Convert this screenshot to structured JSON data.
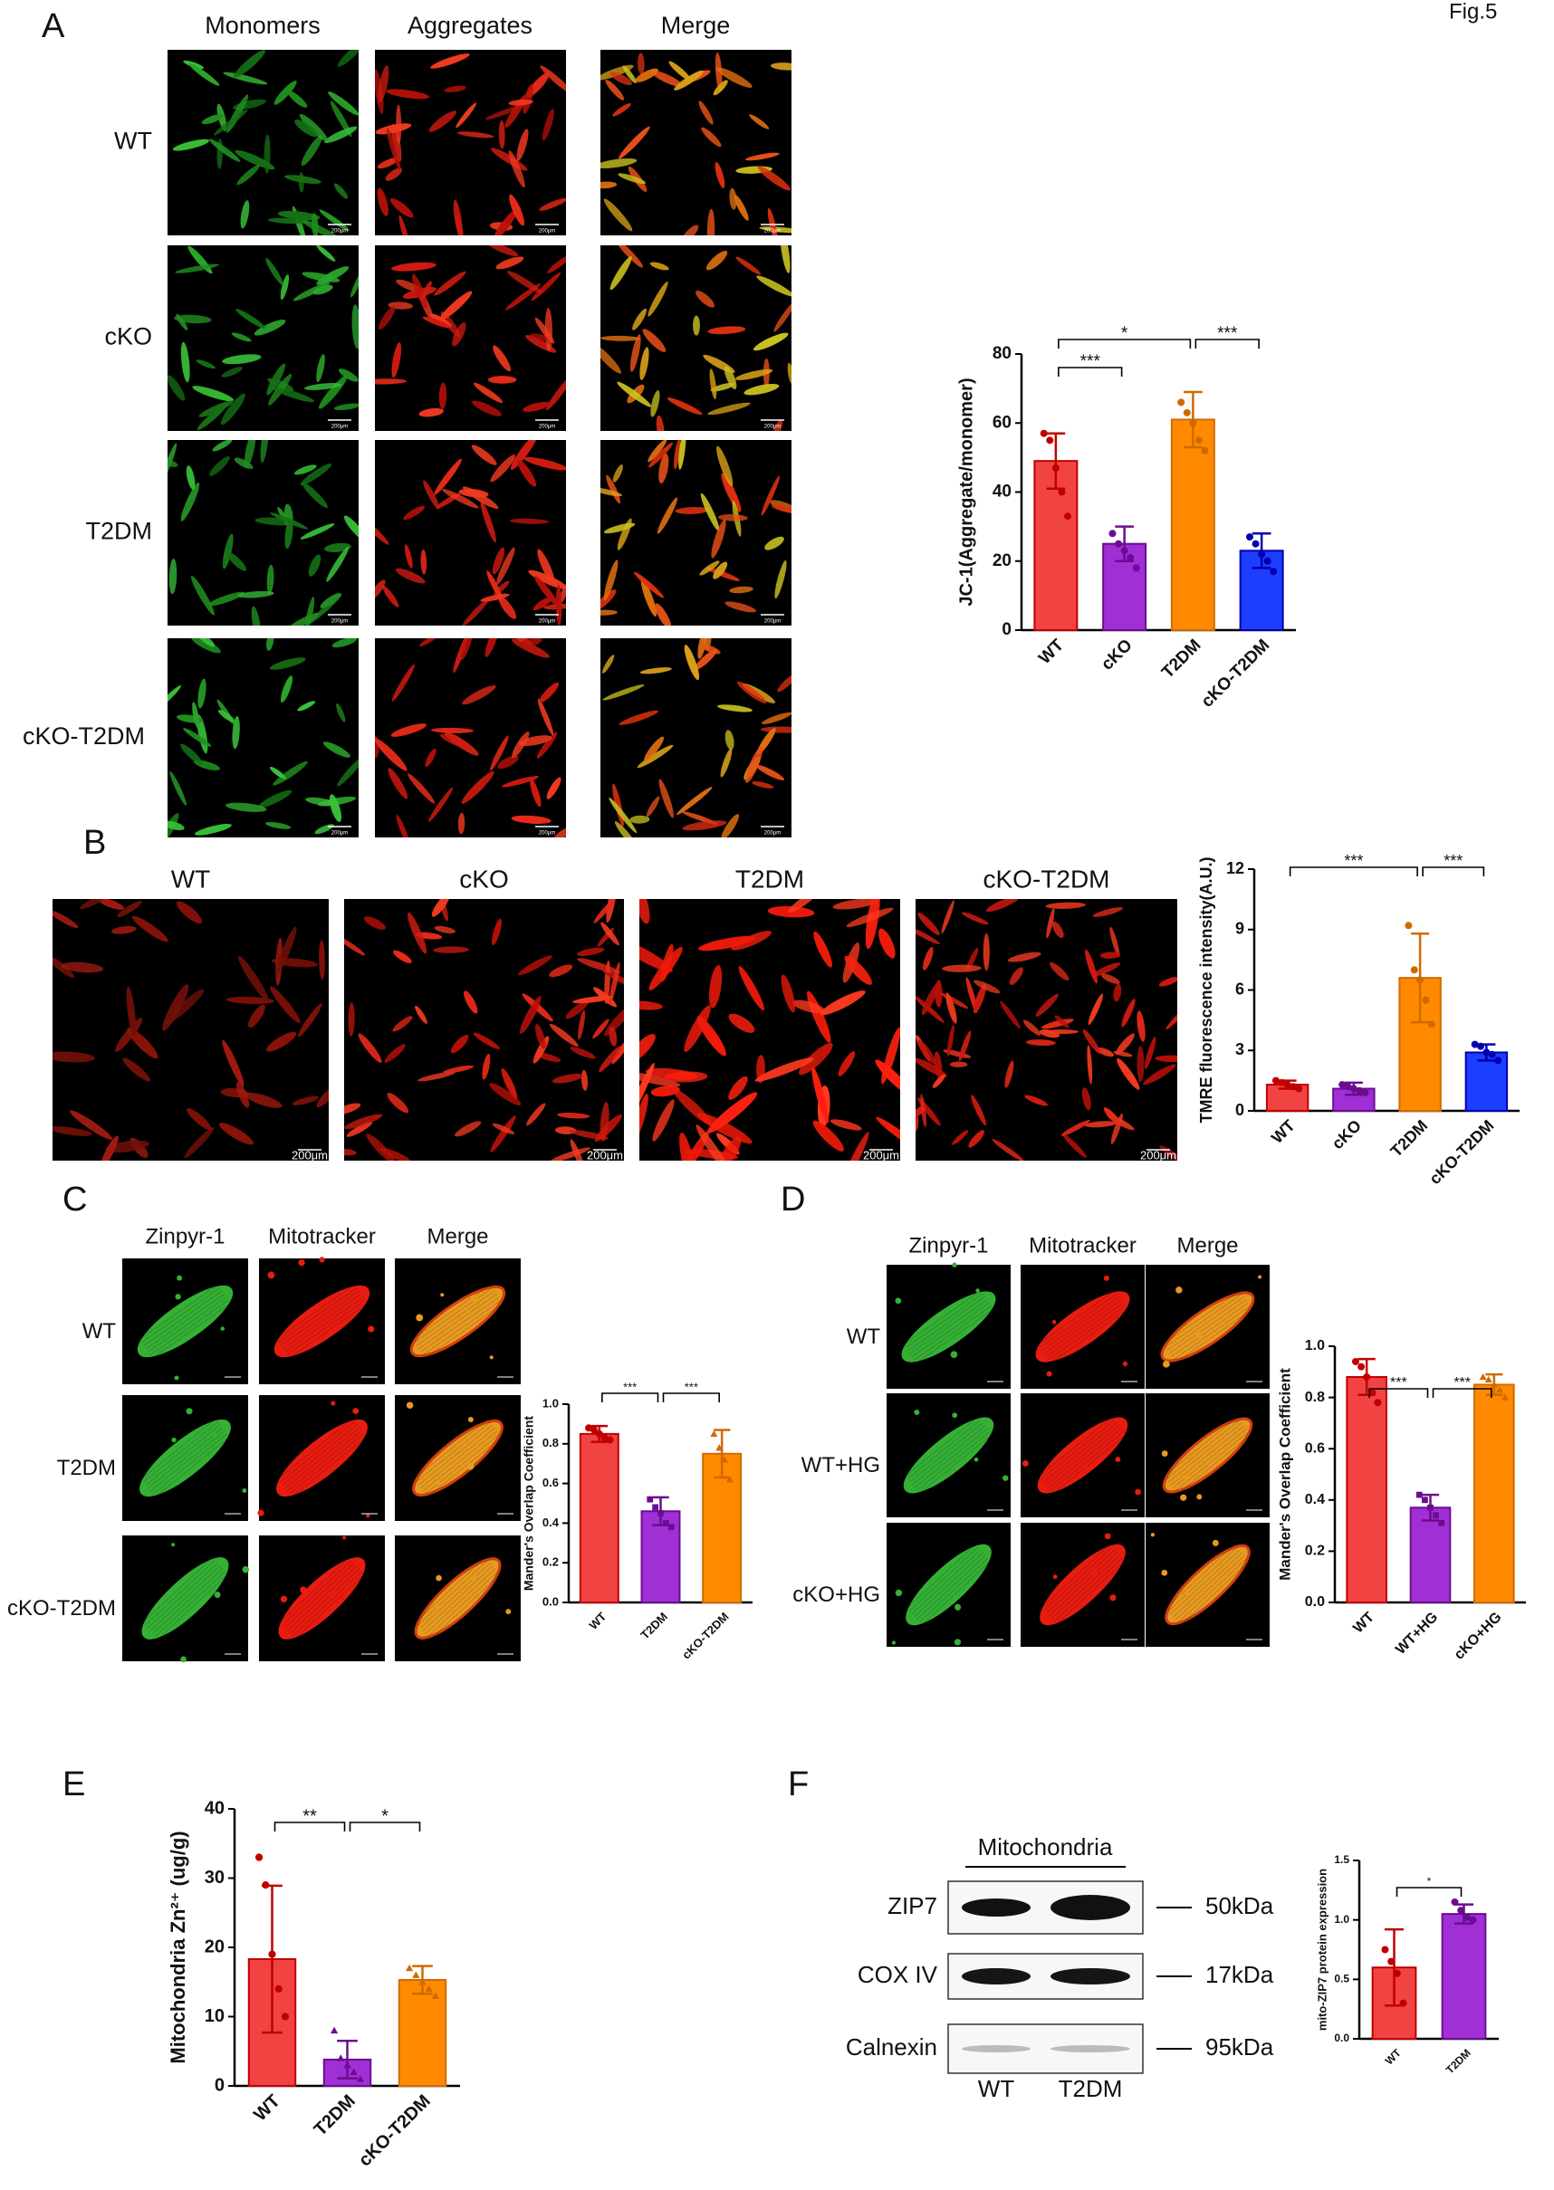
{
  "figure_label": "Fig.5",
  "panel_labels": [
    "A",
    "B",
    "C",
    "D",
    "E",
    "F"
  ],
  "panel_a": {
    "columns": [
      "Monomers",
      "Aggregates",
      "Merge"
    ],
    "rows": [
      "WT",
      "cKO",
      "T2DM",
      "cKO-T2DM"
    ],
    "scale_bar": "200μm"
  },
  "panel_b": {
    "columns": [
      "WT",
      "cKO",
      "T2DM",
      "cKO-T2DM"
    ],
    "scale_bar": "200μm"
  },
  "panel_c": {
    "columns": [
      "Zinpyr-1",
      "Mitotracker",
      "Merge"
    ],
    "rows": [
      "WT",
      "T2DM",
      "cKO-T2DM"
    ]
  },
  "panel_d": {
    "columns": [
      "Zinpyr-1",
      "Mitotracker",
      "Merge"
    ],
    "rows": [
      "WT",
      "WT+HG",
      "cKO+HG"
    ]
  },
  "panel_f": {
    "header": "Mitochondria",
    "bands": [
      "ZIP7",
      "COX IV",
      "Calnexin"
    ],
    "markers": [
      "50kDa",
      "17kDa",
      "95kDa"
    ],
    "lanes": [
      "WT",
      "T2DM"
    ]
  },
  "chart_data": [
    {
      "type": "bar",
      "ylabel": "JC-1(Aggregate/monomer)",
      "categories": [
        "WT",
        "cKO",
        "T2DM",
        "cKO-T2DM"
      ],
      "values": [
        49,
        25,
        61,
        23
      ],
      "errors": [
        8,
        5,
        8,
        5
      ],
      "points": [
        [
          57,
          55,
          47,
          40,
          33
        ],
        [
          28,
          25,
          23,
          21,
          18
        ],
        [
          66,
          63,
          60,
          55,
          52
        ],
        [
          27,
          25,
          22,
          20,
          17
        ]
      ],
      "colors": [
        "#f24343",
        "#a02fd6",
        "#ff8a00",
        "#1d3dff"
      ],
      "edge_colors": [
        "#c00000",
        "#6a0d91",
        "#d06a00",
        "#0000b0"
      ],
      "ylim": [
        0,
        80
      ],
      "yticks": [
        0,
        20,
        40,
        60,
        80
      ],
      "annotations": [
        {
          "label": "*",
          "between": [
            0,
            2
          ]
        },
        {
          "label": "***",
          "between": [
            0,
            1
          ]
        },
        {
          "label": "***",
          "between": [
            2,
            3
          ]
        }
      ]
    },
    {
      "type": "bar",
      "ylabel": "TMRE fluorescence intensity(A.U.)",
      "categories": [
        "WT",
        "cKO",
        "T2DM",
        "cKO-T2DM"
      ],
      "values": [
        1.3,
        1.1,
        6.6,
        2.9
      ],
      "errors": [
        0.2,
        0.3,
        2.2,
        0.4
      ],
      "points": [
        [
          1.5,
          1.4,
          1.3,
          1.2,
          1.1
        ],
        [
          1.3,
          1.2,
          1.1,
          1.0,
          0.9
        ],
        [
          9.2,
          7.0,
          6.5,
          5.5,
          4.3
        ],
        [
          3.3,
          3.2,
          2.9,
          2.8,
          2.5
        ]
      ],
      "colors": [
        "#f24343",
        "#a02fd6",
        "#ff8a00",
        "#1d3dff"
      ],
      "edge_colors": [
        "#c00000",
        "#6a0d91",
        "#d06a00",
        "#0000b0"
      ],
      "ylim": [
        0,
        12
      ],
      "yticks": [
        0,
        3,
        6,
        9,
        12
      ],
      "annotations": [
        {
          "label": "***",
          "between": [
            0,
            2
          ]
        },
        {
          "label": "***",
          "between": [
            2,
            3
          ]
        }
      ]
    },
    {
      "type": "bar",
      "ylabel": "Mander's Overlap Coefficient",
      "categories": [
        "WT",
        "T2DM",
        "cKO-T2DM"
      ],
      "values": [
        0.85,
        0.46,
        0.75
      ],
      "errors": [
        0.04,
        0.07,
        0.12
      ],
      "points": [
        [
          0.88,
          0.87,
          0.85,
          0.83,
          0.82
        ],
        [
          0.52,
          0.48,
          0.45,
          0.4,
          0.38
        ],
        [
          0.85,
          0.78,
          0.72,
          0.62
        ]
      ],
      "markers": [
        "circle",
        "square",
        "triangle"
      ],
      "colors": [
        "#f24343",
        "#a02fd6",
        "#ff8a00"
      ],
      "edge_colors": [
        "#c00000",
        "#6a0d91",
        "#d06a00"
      ],
      "ylim": [
        0,
        1.0
      ],
      "yticks": [
        {
          "value": 0,
          "label": "0.0"
        },
        0.2,
        0.4,
        0.6,
        0.8,
        {
          "value": 1,
          "label": "1.0"
        }
      ],
      "annotations": [
        {
          "label": "***",
          "between": [
            0,
            1
          ]
        },
        {
          "label": "***",
          "between": [
            1,
            2
          ]
        }
      ]
    },
    {
      "type": "bar",
      "ylabel": "Mander's Overlap Coefficient",
      "categories": [
        "WT",
        "WT+HG",
        "cKO+HG"
      ],
      "values": [
        0.88,
        0.37,
        0.85
      ],
      "errors": [
        0.07,
        0.05,
        0.04
      ],
      "points": [
        [
          0.94,
          0.92,
          0.88,
          0.82,
          0.78
        ],
        [
          0.42,
          0.4,
          0.37,
          0.34,
          0.31
        ],
        [
          0.88,
          0.87,
          0.85,
          0.83,
          0.8
        ]
      ],
      "markers": [
        "circle",
        "square",
        "triangle"
      ],
      "colors": [
        "#f24343",
        "#a02fd6",
        "#ff8a00"
      ],
      "edge_colors": [
        "#c00000",
        "#6a0d91",
        "#d06a00"
      ],
      "ylim": [
        0,
        1.0
      ],
      "yticks": [
        {
          "value": 0,
          "label": "0.0"
        },
        0.2,
        0.4,
        0.6,
        0.8,
        {
          "value": 1,
          "label": "1.0"
        }
      ],
      "annotations": [
        {
          "label": "***",
          "between": [
            0,
            1
          ]
        },
        {
          "label": "***",
          "between": [
            1,
            2
          ]
        }
      ]
    },
    {
      "type": "bar",
      "ylabel": "Mitochondria Zn²⁺ (ug/g)",
      "categories": [
        "WT",
        "T2DM",
        "cKO-T2DM"
      ],
      "values": [
        18.3,
        3.8,
        15.3
      ],
      "errors": [
        10.6,
        2.7,
        2.0
      ],
      "points": [
        [
          33,
          29,
          19,
          14,
          10
        ],
        [
          8,
          4,
          3,
          2,
          1
        ],
        [
          17,
          16,
          15,
          14,
          13
        ]
      ],
      "markers": [
        "circle",
        "triangle",
        "triangle"
      ],
      "colors": [
        "#f24343",
        "#a02fd6",
        "#ff8a00"
      ],
      "edge_colors": [
        "#c00000",
        "#6a0d91",
        "#d06a00"
      ],
      "ylim": [
        0,
        40
      ],
      "yticks": [
        0,
        10,
        20,
        30,
        40
      ],
      "annotations": [
        {
          "label": "**",
          "between": [
            0,
            1
          ]
        },
        {
          "label": "*",
          "between": [
            1,
            2
          ]
        }
      ]
    },
    {
      "type": "bar",
      "ylabel": "mito-ZIP7 protein expression",
      "categories": [
        "WT",
        "T2DM"
      ],
      "values": [
        0.6,
        1.05
      ],
      "errors": [
        0.32,
        0.08
      ],
      "points": [
        [
          0.75,
          0.65,
          0.55,
          0.3
        ],
        [
          1.15,
          1.08,
          1.02,
          1.0
        ]
      ],
      "colors": [
        "#f24343",
        "#a02fd6"
      ],
      "edge_colors": [
        "#c00000",
        "#6a0d91"
      ],
      "ylim": [
        0,
        1.5
      ],
      "yticks": [
        {
          "value": 0,
          "label": "0.0"
        },
        0.5,
        {
          "value": 1,
          "label": "1.0"
        },
        1.5
      ],
      "annotations": [
        {
          "label": "*",
          "between": [
            0,
            1
          ]
        }
      ]
    }
  ]
}
